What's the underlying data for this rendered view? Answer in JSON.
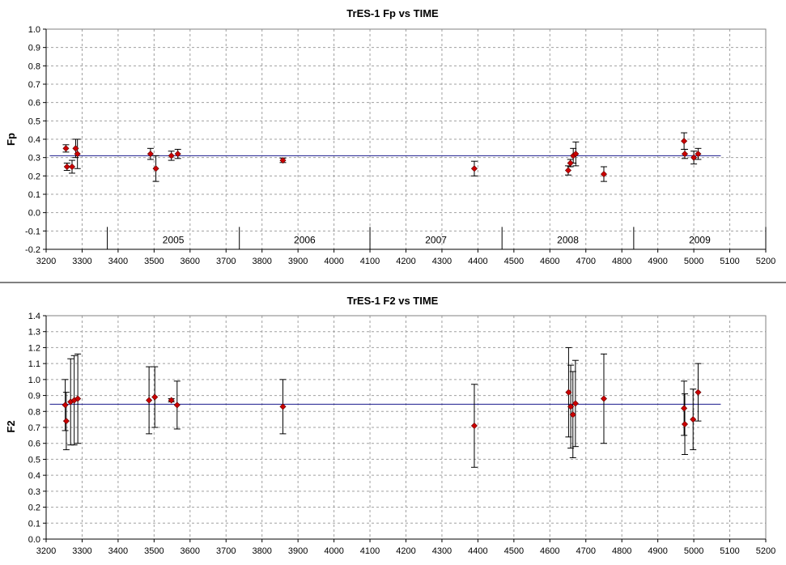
{
  "chart_data": [
    {
      "type": "scatter",
      "title": "TrES-1 Fp vs TIME",
      "xlabel": "",
      "ylabel": "Fp",
      "xlim": [
        3200,
        5200
      ],
      "ylim": [
        -0.2,
        1.0
      ],
      "xticks": [
        3200,
        3300,
        3400,
        3500,
        3600,
        3700,
        3800,
        3900,
        4000,
        4100,
        4200,
        4300,
        4400,
        4500,
        4600,
        4700,
        4800,
        4900,
        5000,
        5100,
        5200
      ],
      "yticks": [
        -0.2,
        -0.1,
        0.0,
        0.1,
        0.2,
        0.3,
        0.4,
        0.5,
        0.6,
        0.7,
        0.8,
        0.9,
        1.0
      ],
      "grid": true,
      "reference_line": {
        "x": [
          3210,
          5075
        ],
        "y": 0.31,
        "color": "#1a1a8c"
      },
      "marker_color": "#cc0000",
      "years": [
        {
          "label": "2005",
          "start": 3370,
          "end": 3737
        },
        {
          "label": "2006",
          "start": 3737,
          "end": 4100
        },
        {
          "label": "2007",
          "start": 4100,
          "end": 4467
        },
        {
          "label": "2008",
          "start": 4467,
          "end": 4833
        },
        {
          "label": "2009",
          "start": 4833,
          "end": 5200
        }
      ],
      "points": [
        {
          "x": 3255,
          "y": 0.35,
          "err": 0.02
        },
        {
          "x": 3258,
          "y": 0.25,
          "err": 0.02
        },
        {
          "x": 3272,
          "y": 0.25,
          "err": 0.035
        },
        {
          "x": 3282,
          "y": 0.35,
          "err": 0.05
        },
        {
          "x": 3287,
          "y": 0.32,
          "err": 0.08
        },
        {
          "x": 3490,
          "y": 0.32,
          "err": 0.03
        },
        {
          "x": 3505,
          "y": 0.24,
          "err": 0.07
        },
        {
          "x": 3548,
          "y": 0.31,
          "err": 0.025
        },
        {
          "x": 3566,
          "y": 0.32,
          "err": 0.025
        },
        {
          "x": 3858,
          "y": 0.285,
          "err": 0.012
        },
        {
          "x": 4390,
          "y": 0.24,
          "err": 0.04
        },
        {
          "x": 4651,
          "y": 0.23,
          "err": 0.025
        },
        {
          "x": 4657,
          "y": 0.27,
          "err": 0.02
        },
        {
          "x": 4665,
          "y": 0.31,
          "err": 0.04
        },
        {
          "x": 4672,
          "y": 0.32,
          "err": 0.065
        },
        {
          "x": 4750,
          "y": 0.21,
          "err": 0.04
        },
        {
          "x": 4973,
          "y": 0.39,
          "err": 0.045
        },
        {
          "x": 4975,
          "y": 0.32,
          "err": 0.025
        },
        {
          "x": 5000,
          "y": 0.3,
          "err": 0.035
        },
        {
          "x": 5012,
          "y": 0.32,
          "err": 0.03
        }
      ]
    },
    {
      "type": "scatter",
      "title": "TrES-1 F2 vs TIME",
      "xlabel": "",
      "ylabel": "F2",
      "xlim": [
        3200,
        5200
      ],
      "ylim": [
        0.0,
        1.4
      ],
      "xticks": [
        3200,
        3300,
        3400,
        3500,
        3600,
        3700,
        3800,
        3900,
        4000,
        4100,
        4200,
        4300,
        4400,
        4500,
        4600,
        4700,
        4800,
        4900,
        5000,
        5100,
        5200
      ],
      "yticks": [
        0.0,
        0.1,
        0.2,
        0.3,
        0.4,
        0.5,
        0.6,
        0.7,
        0.8,
        0.9,
        1.0,
        1.1,
        1.2,
        1.3,
        1.4
      ],
      "grid": true,
      "reference_line": {
        "x": [
          3210,
          5075
        ],
        "y": 0.845,
        "color": "#1a1a8c"
      },
      "marker_color": "#cc0000",
      "points": [
        {
          "x": 3253,
          "y": 0.84,
          "err": 0.16
        },
        {
          "x": 3256,
          "y": 0.74,
          "err": 0.18
        },
        {
          "x": 3268,
          "y": 0.86,
          "err": 0.27
        },
        {
          "x": 3278,
          "y": 0.87,
          "err": 0.28
        },
        {
          "x": 3288,
          "y": 0.88,
          "err": 0.28
        },
        {
          "x": 3486,
          "y": 0.87,
          "err": 0.21
        },
        {
          "x": 3502,
          "y": 0.89,
          "err": 0.19
        },
        {
          "x": 3548,
          "y": 0.87,
          "err": 0.01
        },
        {
          "x": 3564,
          "y": 0.84,
          "err": 0.15
        },
        {
          "x": 3858,
          "y": 0.83,
          "err": 0.17
        },
        {
          "x": 4390,
          "y": 0.71,
          "err": 0.26
        },
        {
          "x": 4652,
          "y": 0.92,
          "err": 0.28
        },
        {
          "x": 4658,
          "y": 0.83,
          "err": 0.26
        },
        {
          "x": 4664,
          "y": 0.78,
          "err": 0.27
        },
        {
          "x": 4671,
          "y": 0.85,
          "err": 0.27
        },
        {
          "x": 4750,
          "y": 0.88,
          "err": 0.28
        },
        {
          "x": 4973,
          "y": 0.82,
          "err": 0.17
        },
        {
          "x": 4975,
          "y": 0.72,
          "err": 0.19
        },
        {
          "x": 4998,
          "y": 0.75,
          "err": 0.19
        },
        {
          "x": 5012,
          "y": 0.92,
          "err": 0.18
        }
      ]
    }
  ]
}
